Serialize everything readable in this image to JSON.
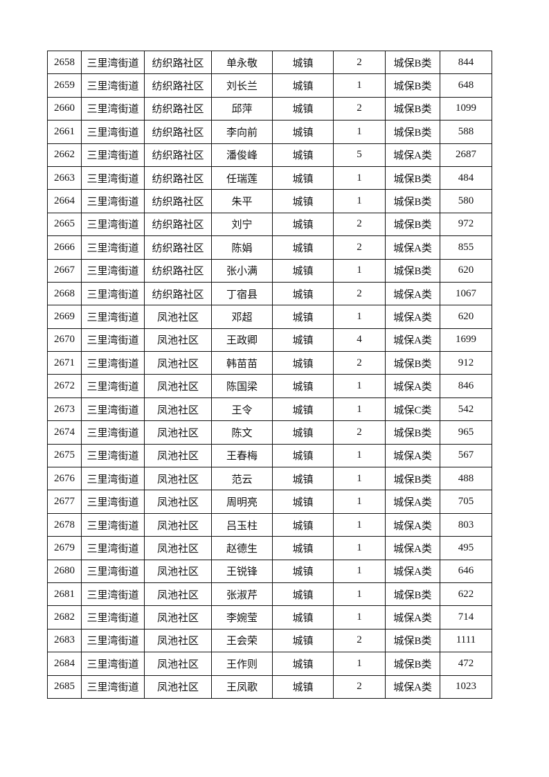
{
  "table": {
    "rows": [
      [
        "2658",
        "三里湾街道",
        "纺织路社区",
        "单永敬",
        "城镇",
        "2",
        "城保B类",
        "844"
      ],
      [
        "2659",
        "三里湾街道",
        "纺织路社区",
        "刘长兰",
        "城镇",
        "1",
        "城保B类",
        "648"
      ],
      [
        "2660",
        "三里湾街道",
        "纺织路社区",
        "邱萍",
        "城镇",
        "2",
        "城保B类",
        "1099"
      ],
      [
        "2661",
        "三里湾街道",
        "纺织路社区",
        "李向前",
        "城镇",
        "1",
        "城保B类",
        "588"
      ],
      [
        "2662",
        "三里湾街道",
        "纺织路社区",
        "潘俊峰",
        "城镇",
        "5",
        "城保A类",
        "2687"
      ],
      [
        "2663",
        "三里湾街道",
        "纺织路社区",
        "任瑞莲",
        "城镇",
        "1",
        "城保B类",
        "484"
      ],
      [
        "2664",
        "三里湾街道",
        "纺织路社区",
        "朱平",
        "城镇",
        "1",
        "城保B类",
        "580"
      ],
      [
        "2665",
        "三里湾街道",
        "纺织路社区",
        "刘宁",
        "城镇",
        "2",
        "城保B类",
        "972"
      ],
      [
        "2666",
        "三里湾街道",
        "纺织路社区",
        "陈娟",
        "城镇",
        "2",
        "城保A类",
        "855"
      ],
      [
        "2667",
        "三里湾街道",
        "纺织路社区",
        "张小满",
        "城镇",
        "1",
        "城保B类",
        "620"
      ],
      [
        "2668",
        "三里湾街道",
        "纺织路社区",
        "丁宿县",
        "城镇",
        "2",
        "城保A类",
        "1067"
      ],
      [
        "2669",
        "三里湾街道",
        "凤池社区",
        "邓超",
        "城镇",
        "1",
        "城保A类",
        "620"
      ],
      [
        "2670",
        "三里湾街道",
        "凤池社区",
        "王政卿",
        "城镇",
        "4",
        "城保A类",
        "1699"
      ],
      [
        "2671",
        "三里湾街道",
        "凤池社区",
        "韩苗苗",
        "城镇",
        "2",
        "城保B类",
        "912"
      ],
      [
        "2672",
        "三里湾街道",
        "凤池社区",
        "陈国梁",
        "城镇",
        "1",
        "城保A类",
        "846"
      ],
      [
        "2673",
        "三里湾街道",
        "凤池社区",
        "王令",
        "城镇",
        "1",
        "城保C类",
        "542"
      ],
      [
        "2674",
        "三里湾街道",
        "凤池社区",
        "陈文",
        "城镇",
        "2",
        "城保B类",
        "965"
      ],
      [
        "2675",
        "三里湾街道",
        "凤池社区",
        "王春梅",
        "城镇",
        "1",
        "城保A类",
        "567"
      ],
      [
        "2676",
        "三里湾街道",
        "凤池社区",
        "范云",
        "城镇",
        "1",
        "城保B类",
        "488"
      ],
      [
        "2677",
        "三里湾街道",
        "凤池社区",
        "周明亮",
        "城镇",
        "1",
        "城保A类",
        "705"
      ],
      [
        "2678",
        "三里湾街道",
        "凤池社区",
        "吕玉柱",
        "城镇",
        "1",
        "城保A类",
        "803"
      ],
      [
        "2679",
        "三里湾街道",
        "凤池社区",
        "赵德生",
        "城镇",
        "1",
        "城保A类",
        "495"
      ],
      [
        "2680",
        "三里湾街道",
        "凤池社区",
        "王锐锋",
        "城镇",
        "1",
        "城保A类",
        "646"
      ],
      [
        "2681",
        "三里湾街道",
        "凤池社区",
        "张淑芹",
        "城镇",
        "1",
        "城保B类",
        "622"
      ],
      [
        "2682",
        "三里湾街道",
        "凤池社区",
        "李婉莹",
        "城镇",
        "1",
        "城保A类",
        "714"
      ],
      [
        "2683",
        "三里湾街道",
        "凤池社区",
        "王会荣",
        "城镇",
        "2",
        "城保B类",
        "1111"
      ],
      [
        "2684",
        "三里湾街道",
        "凤池社区",
        "王作则",
        "城镇",
        "1",
        "城保B类",
        "472"
      ],
      [
        "2685",
        "三里湾街道",
        "凤池社区",
        "王凤歌",
        "城镇",
        "2",
        "城保A类",
        "1023"
      ]
    ]
  }
}
